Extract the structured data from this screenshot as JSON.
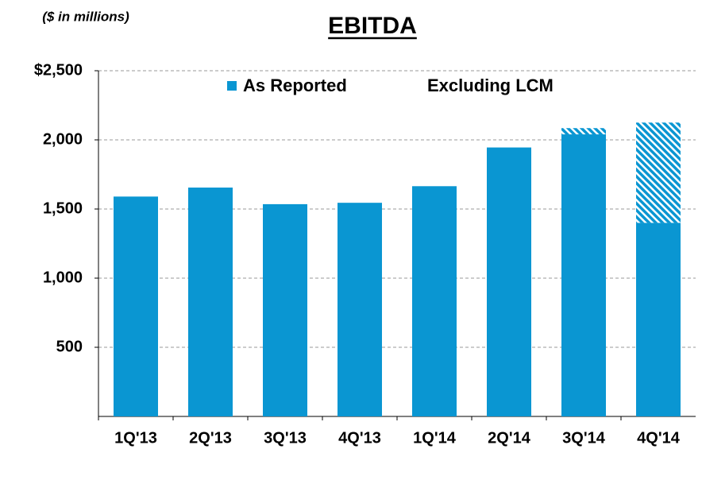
{
  "chart_data": {
    "type": "stacked-bar",
    "title": "EBITDA",
    "subtitle": "($ in millions)",
    "categories": [
      "1Q'13",
      "2Q'13",
      "3Q'13",
      "4Q'13",
      "1Q'14",
      "2Q'14",
      "3Q'14",
      "4Q'14"
    ],
    "series": [
      {
        "name": "As Reported",
        "color": "#0a96d2",
        "values": [
          1590,
          1655,
          1535,
          1545,
          1665,
          1945,
          2040,
          1400
        ]
      },
      {
        "name": "Excluding LCM",
        "color": "#0a96d2",
        "pattern": "hatch",
        "values": [
          null,
          null,
          null,
          null,
          null,
          null,
          45,
          725
        ]
      }
    ],
    "ylim": [
      0,
      2500
    ],
    "yticks": [
      500,
      {
        "value": 1000,
        "label": "1,000"
      },
      {
        "value": 1500,
        "label": "1,500"
      },
      {
        "value": 2000,
        "label": "2,000"
      },
      {
        "value": 2500,
        "label": "$2,500"
      }
    ],
    "grid": true
  }
}
